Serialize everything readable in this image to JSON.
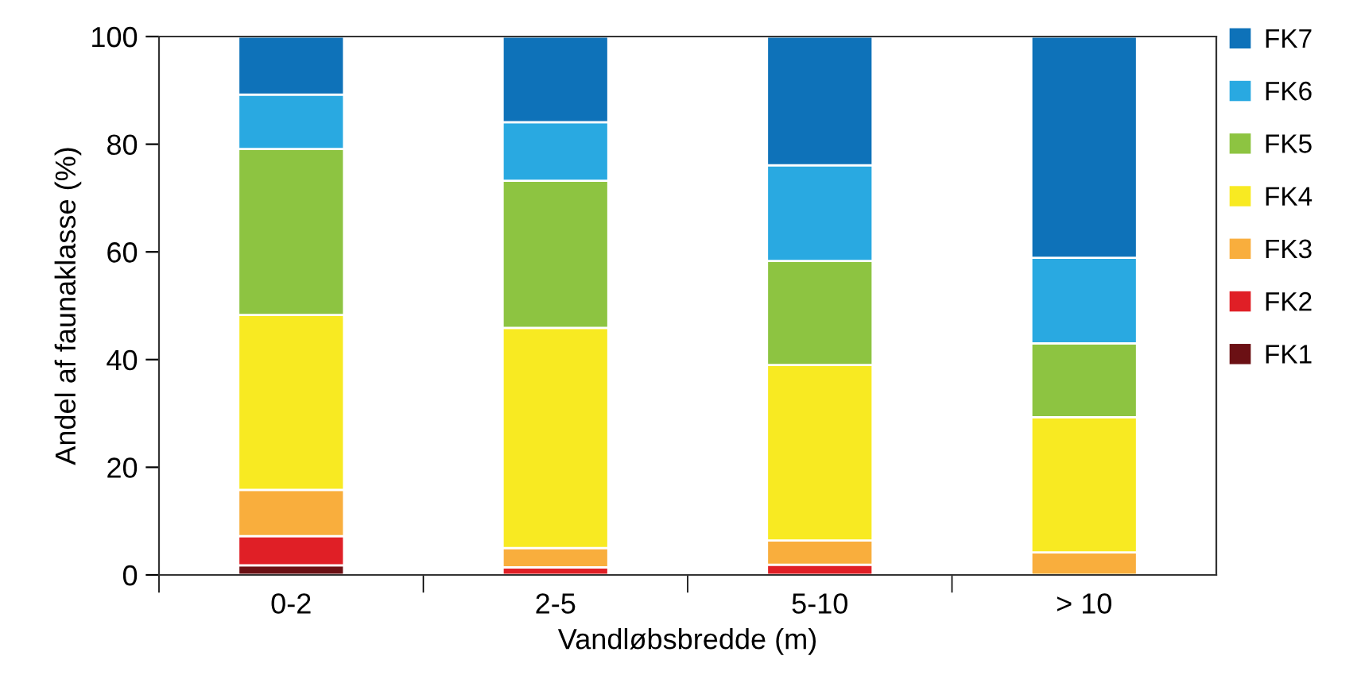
{
  "chart_data": {
    "type": "bar",
    "stacked": true,
    "xlabel": "Vandløbsbredde (m)",
    "ylabel": "Andel af faunaklasse (%)",
    "categories": [
      "0-2",
      "2-5",
      "5-10",
      "> 10"
    ],
    "series": [
      {
        "name": "FK1",
        "color": "#6b1014",
        "values": [
          1.8,
          0,
          0,
          0
        ]
      },
      {
        "name": "FK2",
        "color": "#e01f26",
        "values": [
          5.4,
          1.4,
          1.9,
          0
        ]
      },
      {
        "name": "FK3",
        "color": "#f9ae3d",
        "values": [
          8.6,
          3.6,
          4.5,
          4.2
        ]
      },
      {
        "name": "FK4",
        "color": "#f8ea22",
        "values": [
          32.5,
          40.9,
          32.6,
          25.1
        ]
      },
      {
        "name": "FK5",
        "color": "#8dc441",
        "values": [
          30.8,
          27.3,
          19.3,
          13.7
        ]
      },
      {
        "name": "FK6",
        "color": "#29a9e1",
        "values": [
          10.1,
          10.9,
          17.8,
          15.9
        ]
      },
      {
        "name": "FK7",
        "color": "#0e72b9",
        "values": [
          10.8,
          15.9,
          23.9,
          41.1
        ]
      }
    ],
    "ylim": [
      0,
      100
    ],
    "yticks": [
      0,
      20,
      40,
      60,
      80,
      100
    ],
    "grid": false,
    "legend": "right"
  }
}
